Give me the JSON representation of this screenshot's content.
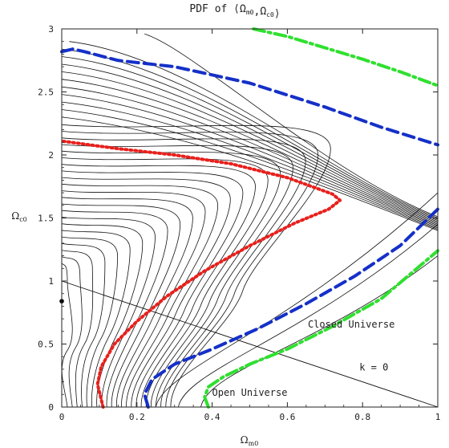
{
  "chart_data": {
    "type": "contour",
    "title": {
      "prefix": "PDF of",
      "symbol": "Ω",
      "m0_sub": "m0",
      "c0_sub": "c0"
    },
    "xlabel": {
      "symbol": "Ω",
      "sub": "m0"
    },
    "ylabel": {
      "symbol": "Ω",
      "sub": "c0"
    },
    "xlim": [
      0,
      1
    ],
    "ylim": [
      0,
      3
    ],
    "x_ticks": [
      "0",
      "0.2",
      "0.4",
      "0.6",
      "0.8",
      "1"
    ],
    "x_tick_values": [
      0,
      0.2,
      0.4,
      0.6,
      0.8,
      1
    ],
    "y_ticks": [
      "0",
      "0.5",
      "1",
      "1.5",
      "2",
      "2.5",
      "3"
    ],
    "y_tick_values": [
      0,
      0.5,
      1,
      1.5,
      2,
      2.5,
      3
    ],
    "annotations": [
      {
        "text": "Closed Universe",
        "x": 0.77,
        "y": 0.63
      },
      {
        "text": "k = 0",
        "x": 0.83,
        "y": 0.29
      },
      {
        "text": "Open Universe",
        "x": 0.5,
        "y": 0.09
      }
    ],
    "flat_line": [
      [
        0,
        1
      ],
      [
        1,
        0
      ]
    ],
    "best_fit_point": [
      0,
      0.84
    ],
    "confidence_contours": [
      {
        "level": "inner",
        "color": "#e8201c",
        "style": "dotted",
        "points": [
          [
            0.11,
            0.0
          ],
          [
            0.095,
            0.18
          ],
          [
            0.105,
            0.32
          ],
          [
            0.14,
            0.5
          ],
          [
            0.2,
            0.68
          ],
          [
            0.28,
            0.88
          ],
          [
            0.38,
            1.08
          ],
          [
            0.5,
            1.28
          ],
          [
            0.62,
            1.46
          ],
          [
            0.71,
            1.57
          ],
          [
            0.74,
            1.64
          ],
          [
            0.72,
            1.69
          ],
          [
            0.6,
            1.82
          ],
          [
            0.45,
            1.93
          ],
          [
            0.3,
            2.0
          ],
          [
            0.15,
            2.05
          ],
          [
            0.0,
            2.11
          ]
        ]
      },
      {
        "level": "middle",
        "color": "#1530c8",
        "style": "dashed",
        "points": [
          [
            0.23,
            0.0
          ],
          [
            0.22,
            0.1
          ],
          [
            0.24,
            0.22
          ],
          [
            0.3,
            0.34
          ],
          [
            0.4,
            0.46
          ],
          [
            0.52,
            0.62
          ],
          [
            0.65,
            0.82
          ],
          [
            0.78,
            1.04
          ],
          [
            0.9,
            1.28
          ],
          [
            1.0,
            1.57
          ]
        ]
      },
      {
        "level": "middle-upper",
        "color": "#1530c8",
        "style": "dashed",
        "points": [
          [
            0.0,
            2.82
          ],
          [
            0.03,
            2.84
          ],
          [
            0.06,
            2.82
          ],
          [
            0.15,
            2.75
          ],
          [
            0.3,
            2.7
          ],
          [
            0.5,
            2.57
          ],
          [
            0.7,
            2.38
          ],
          [
            0.85,
            2.22
          ],
          [
            1.0,
            2.08
          ]
        ]
      },
      {
        "level": "outer",
        "color": "#2fe02f",
        "style": "dash-dot",
        "points": [
          [
            0.39,
            0.0
          ],
          [
            0.38,
            0.08
          ],
          [
            0.39,
            0.16
          ],
          [
            0.43,
            0.24
          ],
          [
            0.5,
            0.34
          ],
          [
            0.6,
            0.46
          ],
          [
            0.72,
            0.64
          ],
          [
            0.85,
            0.86
          ],
          [
            1.0,
            1.24
          ]
        ]
      },
      {
        "level": "outer-upper",
        "color": "#2fe02f",
        "style": "dash-dot",
        "points": [
          [
            0.51,
            3.0
          ],
          [
            0.6,
            2.94
          ],
          [
            0.7,
            2.85
          ],
          [
            0.8,
            2.76
          ],
          [
            0.9,
            2.66
          ],
          [
            1.0,
            2.55
          ]
        ]
      }
    ]
  }
}
